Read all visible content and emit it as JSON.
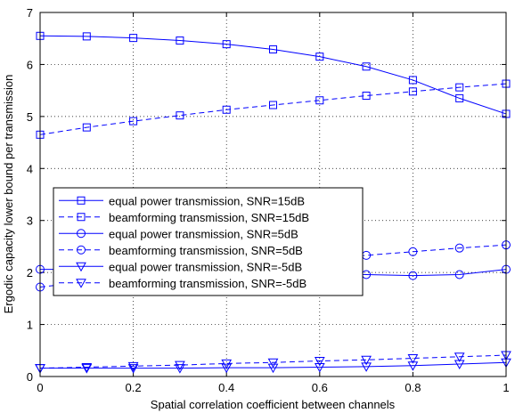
{
  "chart_data": {
    "type": "line",
    "title": "",
    "xlabel": "Spatial correlation coefficient between channels",
    "ylabel": "Ergodic capacity lower bound per transmission",
    "xlim": [
      0,
      1
    ],
    "ylim": [
      0,
      7
    ],
    "xticks": [
      "0",
      "0.2",
      "0.4",
      "0.6",
      "0.8",
      "1"
    ],
    "yticks": [
      "0",
      "1",
      "2",
      "3",
      "4",
      "5",
      "6",
      "7"
    ],
    "grid": true,
    "legend_position": "middle-left",
    "line_color": "#0000ff",
    "x": [
      0,
      0.1,
      0.2,
      0.3,
      0.4,
      0.5,
      0.6,
      0.7,
      0.8,
      0.9,
      1.0
    ],
    "series": [
      {
        "name": "equal power transmission, SNR=15dB",
        "marker": "square",
        "dash": "solid",
        "values": [
          6.55,
          6.54,
          6.51,
          6.46,
          6.39,
          6.29,
          6.15,
          5.96,
          5.7,
          5.35,
          5.05
        ]
      },
      {
        "name": "beamforming transmission, SNR=15dB",
        "marker": "square",
        "dash": "dashed",
        "values": [
          4.65,
          4.79,
          4.91,
          5.02,
          5.13,
          5.22,
          5.31,
          5.4,
          5.48,
          5.56,
          5.63
        ]
      },
      {
        "name": "equal power transmission, SNR=5dB",
        "marker": "circle",
        "dash": "solid",
        "values": [
          2.06,
          2.06,
          2.05,
          2.04,
          2.02,
          2.0,
          1.98,
          1.96,
          1.94,
          1.96,
          2.06
        ]
      },
      {
        "name": "beamforming transmission, SNR=5dB",
        "marker": "circle",
        "dash": "dashed",
        "values": [
          1.72,
          1.82,
          1.92,
          2.02,
          2.11,
          2.19,
          2.26,
          2.33,
          2.4,
          2.47,
          2.53
        ]
      },
      {
        "name": "equal power transmission, SNR=-5dB",
        "marker": "triangle-down",
        "dash": "solid",
        "values": [
          0.16,
          0.16,
          0.16,
          0.16,
          0.17,
          0.17,
          0.18,
          0.19,
          0.21,
          0.24,
          0.27
        ]
      },
      {
        "name": "beamforming transmission, SNR=-5dB",
        "marker": "triangle-down",
        "dash": "dashed",
        "values": [
          0.16,
          0.18,
          0.2,
          0.22,
          0.25,
          0.27,
          0.3,
          0.32,
          0.35,
          0.38,
          0.41
        ]
      }
    ]
  }
}
